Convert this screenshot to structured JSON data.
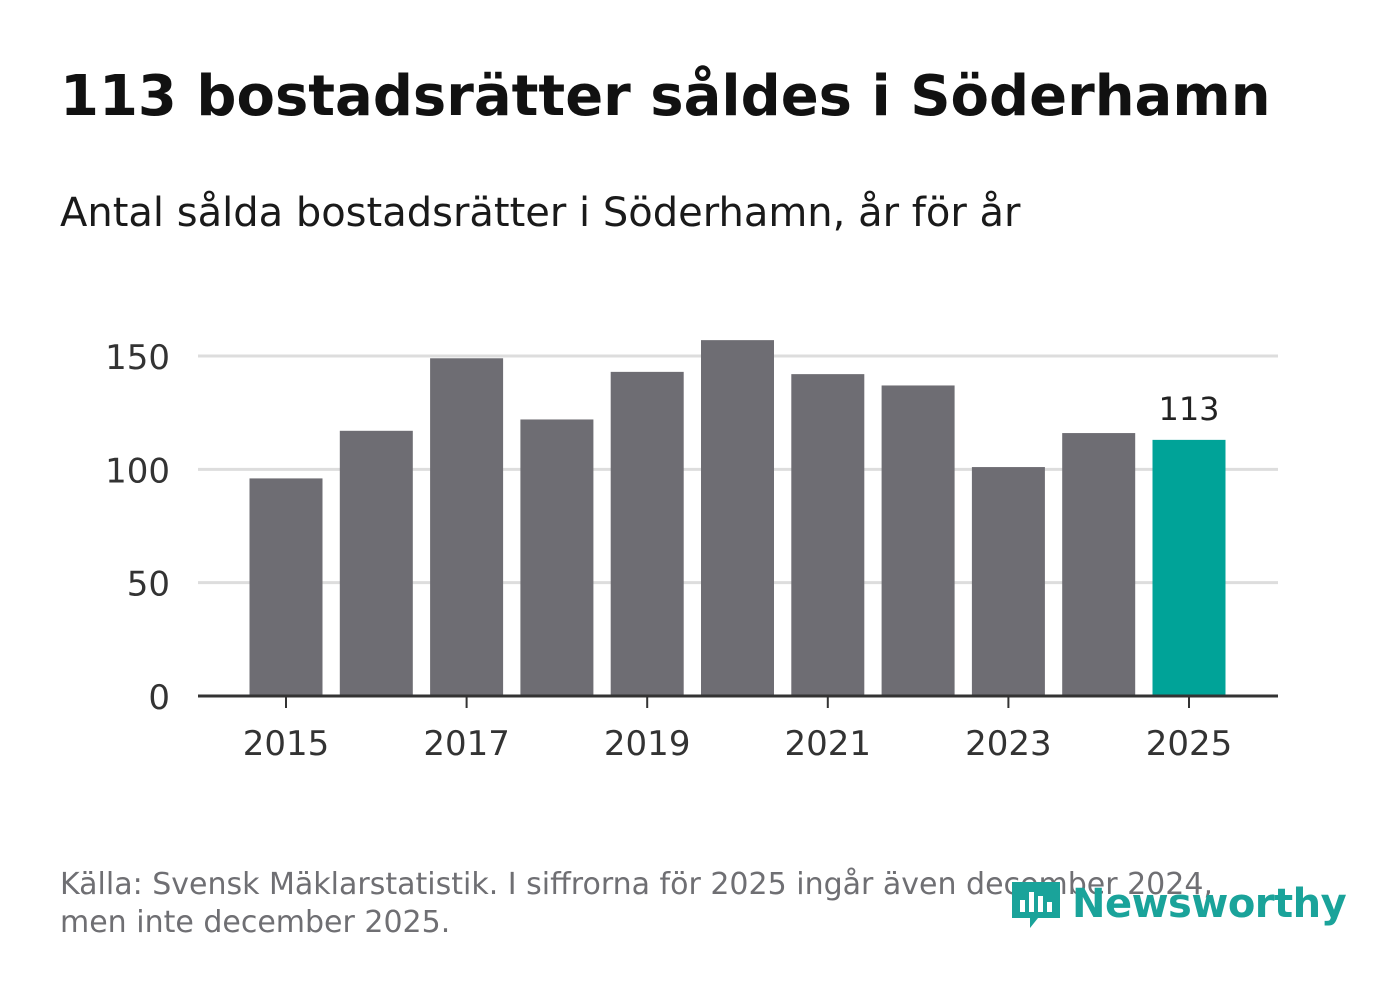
{
  "header": {
    "title": "113 bostadsrätter såldes i Söderhamn",
    "subtitle": "Antal sålda bostadsrätter i Söderhamn, år för år"
  },
  "chart_data": {
    "type": "bar",
    "categories": [
      "2015",
      "2016",
      "2017",
      "2018",
      "2019",
      "2020",
      "2021",
      "2022",
      "2023",
      "2024",
      "2025"
    ],
    "values": [
      96,
      117,
      149,
      122,
      143,
      157,
      142,
      137,
      101,
      116,
      113
    ],
    "highlight_index": 10,
    "highlight_label": "113",
    "x_tick_labels": [
      "2015",
      "2017",
      "2019",
      "2021",
      "2023",
      "2025"
    ],
    "y_ticks": [
      0,
      50,
      100,
      150
    ],
    "ylim": [
      0,
      165
    ],
    "grid": true,
    "colors": {
      "bar": "#6e6d73",
      "highlight": "#00a398",
      "grid": "#dddddd",
      "axis": "#333333"
    },
    "title": "Antal sålda bostadsrätter i Söderhamn, år för år",
    "xlabel": "",
    "ylabel": ""
  },
  "footer": {
    "source_line1": "Källa: Svensk Mäklarstatistik. I siffrorna för 2025 ingår även december 2024,",
    "source_line2": "men inte december 2025.",
    "brand": "Newsworthy",
    "brand_icon": "newsworthy-logo-icon",
    "brand_color": "#1aa39a"
  }
}
